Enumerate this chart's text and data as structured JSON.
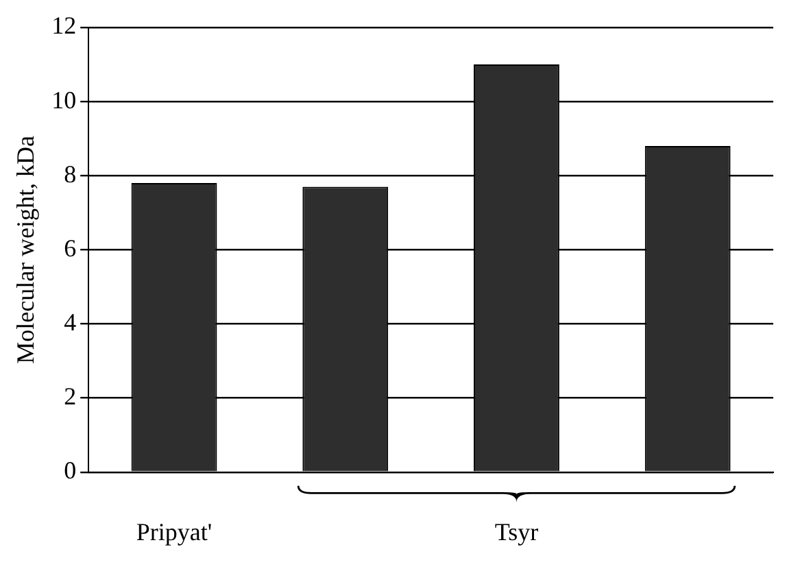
{
  "chart_data": {
    "type": "bar",
    "ylabel": "Molecular weight, kDa",
    "categories": [
      "Pripyat'",
      null,
      "Tsyr",
      null
    ],
    "values": [
      7.8,
      7.7,
      11.0,
      8.8
    ],
    "color": "#2e2e2e",
    "ylim": [
      0,
      12
    ],
    "yticks": [
      0,
      2,
      4,
      6,
      8,
      10,
      12
    ],
    "grid": "y",
    "legend": false
  }
}
